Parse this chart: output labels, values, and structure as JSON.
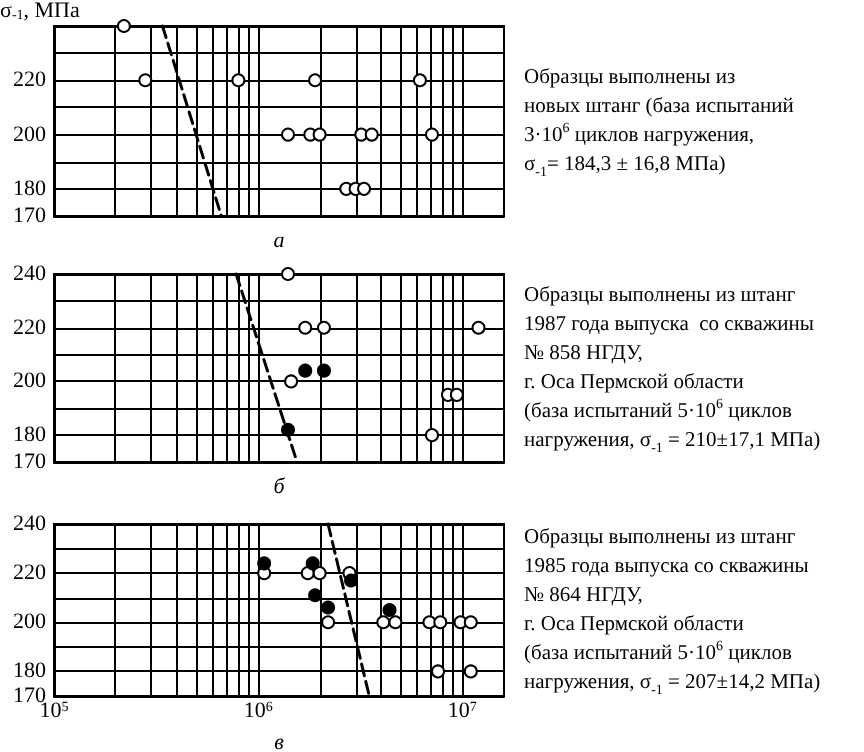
{
  "chart_data": [
    {
      "type": "scatter",
      "ylabel": "σ$_{-1}$, МПа",
      "xlabel": "а",
      "annotations": [
        "Образцы выполнены из\nновых штанг (база испытаний\n3·10$^{6}$ циклов нагружения,\nσ$_{-1}$= 184,3 ± 16,8 МПа)"
      ],
      "log": "x",
      "xlim": [
        100000,
        16000000
      ],
      "xticks": [
        {
          "value": 100000,
          "label": null
        },
        {
          "value": 200000,
          "label": null
        },
        {
          "value": 300000,
          "label": null
        },
        {
          "value": 400000,
          "label": null
        },
        {
          "value": 500000,
          "label": null
        },
        {
          "value": 600000,
          "label": null
        },
        {
          "value": 700000,
          "label": null
        },
        {
          "value": 800000,
          "label": null
        },
        {
          "value": 900000,
          "label": null
        },
        {
          "value": 1000000,
          "label": null
        },
        {
          "value": 2000000,
          "label": null
        },
        {
          "value": 3000000,
          "label": null
        },
        {
          "value": 4000000,
          "label": null
        },
        {
          "value": 5000000,
          "label": null
        },
        {
          "value": 6000000,
          "label": null
        },
        {
          "value": 7000000,
          "label": null
        },
        {
          "value": 8000000,
          "label": null
        },
        {
          "value": 9000000,
          "label": null
        },
        {
          "value": 10000000,
          "label": null
        }
      ],
      "tick_labels": "y",
      "ylim": [
        170,
        240
      ],
      "yticks": [
        170,
        180,
        {
          "value": 190,
          "label": null
        },
        200,
        {
          "value": 210,
          "label": null
        },
        220,
        {
          "value": 230,
          "label": null
        },
        {
          "value": 240,
          "label": null
        }
      ],
      "grid": true,
      "marker": "circle",
      "series": [
        {
          "color": "#ffffff",
          "x": [
            220000,
            280000,
            800000,
            1900000,
            6200000,
            1400000,
            1800000,
            2000000,
            3200000,
            3600000,
            7100000,
            2700000,
            3000000,
            3300000
          ],
          "values": [
            240,
            220,
            220,
            220,
            220,
            200,
            200,
            200,
            200,
            200,
            200,
            180,
            180,
            180
          ]
        },
        {
          "type": "line",
          "marker": "none",
          "line_style": "dashed",
          "color": "#000000",
          "x": [
            340000,
            660000
          ],
          "values": [
            240,
            170
          ]
        }
      ]
    },
    {
      "type": "scatter",
      "xlabel": "б",
      "annotations": [
        "Образцы выполнены из штанг\n1987 года выпуска  со скважины\n№ 858 НГДУ,\nг. Оса Пермской области\n(база испытаний 5·10$^{6}$ циклов\nнагружения, σ$_{-1}$ = 210±17,1 МПа)"
      ],
      "log": "x",
      "xlim": [
        100000,
        16000000
      ],
      "xticks": [
        {
          "value": 100000,
          "label": null
        },
        {
          "value": 200000,
          "label": null
        },
        {
          "value": 300000,
          "label": null
        },
        {
          "value": 400000,
          "label": null
        },
        {
          "value": 500000,
          "label": null
        },
        {
          "value": 600000,
          "label": null
        },
        {
          "value": 700000,
          "label": null
        },
        {
          "value": 800000,
          "label": null
        },
        {
          "value": 900000,
          "label": null
        },
        {
          "value": 1000000,
          "label": null
        },
        {
          "value": 2000000,
          "label": null
        },
        {
          "value": 3000000,
          "label": null
        },
        {
          "value": 4000000,
          "label": null
        },
        {
          "value": 5000000,
          "label": null
        },
        {
          "value": 6000000,
          "label": null
        },
        {
          "value": 7000000,
          "label": null
        },
        {
          "value": 8000000,
          "label": null
        },
        {
          "value": 9000000,
          "label": null
        },
        {
          "value": 10000000,
          "label": null
        }
      ],
      "tick_labels": "y",
      "ylim": [
        170,
        240
      ],
      "yticks": [
        170,
        180,
        {
          "value": 190,
          "label": null
        },
        200,
        {
          "value": 210,
          "label": null
        },
        220,
        {
          "value": 230,
          "label": null
        },
        240
      ],
      "grid": true,
      "marker": "circle",
      "series": [
        {
          "color": "#ffffff",
          "x": [
            1400000,
            1700000,
            2100000,
            12000000,
            1450000,
            8500000,
            9400000,
            7100000
          ],
          "values": [
            240,
            220,
            220,
            220,
            200,
            195,
            195,
            180
          ]
        },
        {
          "color": "#000000",
          "x": [
            1700000,
            2100000,
            1400000
          ],
          "values": [
            204,
            204,
            182
          ]
        },
        {
          "type": "line",
          "marker": "none",
          "line_style": "dashed",
          "color": "#000000",
          "x": [
            780000,
            1550000
          ],
          "values": [
            240,
            170
          ]
        }
      ]
    },
    {
      "type": "scatter",
      "xlabel": "в",
      "annotations": [
        "Образцы выполнены из штанг\n1985 года выпуска со скважины\n№ 864 НГДУ,\nг. Оса Пермской области\n(база испытаний 5·10$^{6}$ циклов\nнагружения, σ$_{-1}$ = 207±14,2 МПа)"
      ],
      "log": "x",
      "xlim": [
        100000,
        16000000
      ],
      "xticks": [
        {
          "value": 100000,
          "label": "10$^{5}$"
        },
        {
          "value": 200000,
          "label": null
        },
        {
          "value": 300000,
          "label": null
        },
        {
          "value": 400000,
          "label": null
        },
        {
          "value": 500000,
          "label": null
        },
        {
          "value": 600000,
          "label": null
        },
        {
          "value": 700000,
          "label": null
        },
        {
          "value": 800000,
          "label": null
        },
        {
          "value": 900000,
          "label": null
        },
        {
          "value": 1000000,
          "label": "10$^{6}$"
        },
        {
          "value": 2000000,
          "label": null
        },
        {
          "value": 3000000,
          "label": null
        },
        {
          "value": 4000000,
          "label": null
        },
        {
          "value": 5000000,
          "label": null
        },
        {
          "value": 6000000,
          "label": null
        },
        {
          "value": 7000000,
          "label": null
        },
        {
          "value": 8000000,
          "label": null
        },
        {
          "value": 9000000,
          "label": null
        },
        {
          "value": 10000000,
          "label": "10$^{7}$"
        }
      ],
      "ylim": [
        170,
        240
      ],
      "yticks": [
        170,
        180,
        {
          "value": 190,
          "label": null
        },
        200,
        {
          "value": 210,
          "label": null
        },
        220,
        {
          "value": 230,
          "label": null
        },
        240
      ],
      "grid": true,
      "marker": "circle",
      "series": [
        {
          "color": "#ffffff",
          "x": [
            1070000,
            1750000,
            2000000,
            2800000,
            2200000,
            4100000,
            4700000,
            6900000,
            7800000,
            9800000,
            11000000,
            7600000,
            11000000
          ],
          "values": [
            220,
            220,
            220,
            220,
            200,
            200,
            200,
            200,
            200,
            200,
            200,
            180,
            180
          ]
        },
        {
          "color": "#000000",
          "x": [
            1070000,
            1850000,
            2850000,
            1900000,
            2200000,
            4400000
          ],
          "values": [
            224,
            224,
            217,
            211,
            206,
            205
          ]
        },
        {
          "type": "line",
          "marker": "none",
          "line_style": "dashed",
          "color": "#000000",
          "x": [
            2200000,
            3500000
          ],
          "values": [
            240,
            170
          ]
        }
      ]
    }
  ]
}
